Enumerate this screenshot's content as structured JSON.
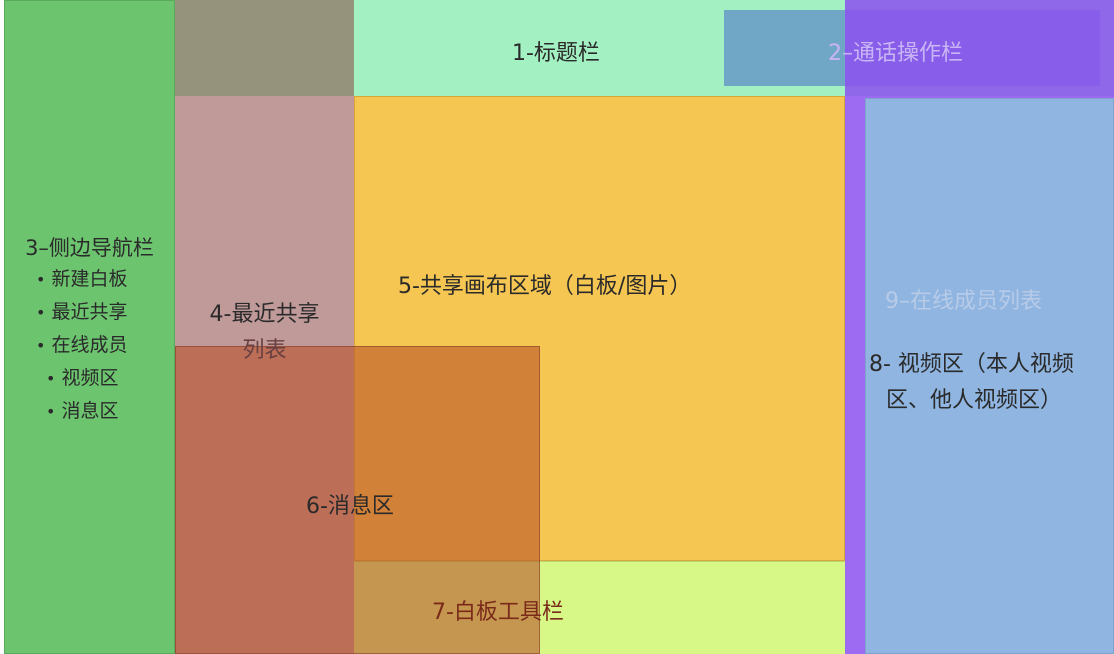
{
  "regions": {
    "titlebar": "1-标题栏",
    "callbar": "2–通话操作栏",
    "sidebar": {
      "title": "3–侧边导航栏",
      "items": [
        "新建白板",
        "最近共享",
        "在线成员",
        "视频区",
        "消息区"
      ]
    },
    "recent": {
      "line1": "4-最近共享",
      "line2": "列表"
    },
    "canvas": "5-共享画布区域（白板/图片）",
    "messages": "6-消息区",
    "toolbar": "7-白板工具栏",
    "video": {
      "line1": "8- 视频区（本人视频",
      "line2": "区、他人视频区）"
    },
    "members": "9–在线成员列表"
  },
  "colors": {
    "titlebar": "#a3f1c2",
    "sidebar": "#6cc46f",
    "canvas": "#f5c651",
    "toolbar": "#d7f887",
    "video": "#8fb5e0",
    "members": "#8c50f0",
    "callbar": "#5078c8",
    "messages": "#b95028",
    "recent": "#8c4646"
  }
}
